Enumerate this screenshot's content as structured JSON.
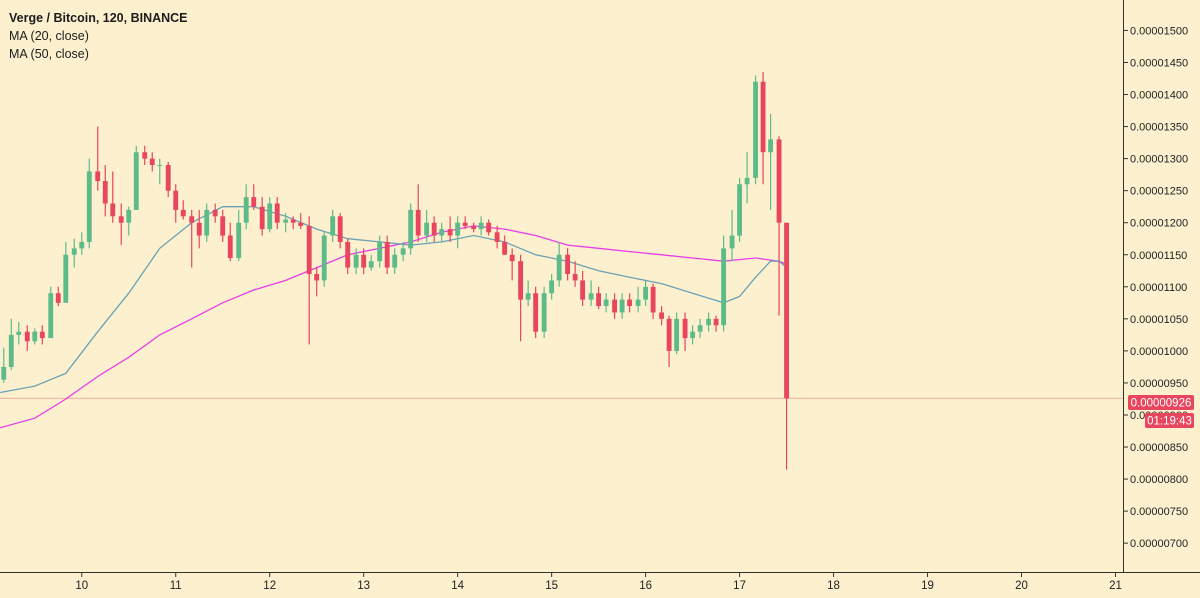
{
  "legend": {
    "title": "Verge / Bitcoin, 120, BINANCE",
    "ma20": "MA (20, close)",
    "ma50": "MA (50, close)"
  },
  "price_badge": "0.00000926",
  "countdown_badge": "01:19:43",
  "colors": {
    "background": "#fdf0cf",
    "up": "#5dbb8a",
    "down": "#e8455e",
    "ma20": "#6aa3b4",
    "ma50": "#e83ee8",
    "axis_text": "#222222",
    "price_line": "#e8455e"
  },
  "chart_data": {
    "type": "candlestick",
    "x_range": [
      9.13,
      21.08
    ],
    "x_ticks": [
      "10",
      "11",
      "12",
      "13",
      "14",
      "15",
      "16",
      "17",
      "18",
      "19",
      "20",
      "21"
    ],
    "y_range": [
      6.55e-06,
      1.5475e-05
    ],
    "y_ticks": [
      "0.00000700",
      "0.00000750",
      "0.00000800",
      "0.00000850",
      "0.00000900",
      "0.00000950",
      "0.00001000",
      "0.00001050",
      "0.00001100",
      "0.00001150",
      "0.00001200",
      "0.00001250",
      "0.00001300",
      "0.00001350",
      "0.00001400",
      "0.00001450",
      "0.00001500"
    ],
    "last_price": 9.26e-06,
    "candles": [
      {
        "t": 9.17,
        "o": 9.55e-06,
        "h": 1.005e-05,
        "l": 9.5e-06,
        "c": 9.75e-06
      },
      {
        "t": 9.25,
        "o": 9.75e-06,
        "h": 1.05e-05,
        "l": 9.7e-06,
        "c": 1.025e-05
      },
      {
        "t": 9.33,
        "o": 1.025e-05,
        "h": 1.045e-05,
        "l": 1.01e-05,
        "c": 1.03e-05
      },
      {
        "t": 9.42,
        "o": 1.03e-05,
        "h": 1.04e-05,
        "l": 1e-05,
        "c": 1.015e-05
      },
      {
        "t": 9.5,
        "o": 1.015e-05,
        "h": 1.035e-05,
        "l": 1.01e-05,
        "c": 1.03e-05
      },
      {
        "t": 9.58,
        "o": 1.03e-05,
        "h": 1.04e-05,
        "l": 1.01e-05,
        "c": 1.02e-05
      },
      {
        "t": 9.67,
        "o": 1.02e-05,
        "h": 1.1e-05,
        "l": 1.02e-05,
        "c": 1.09e-05
      },
      {
        "t": 9.75,
        "o": 1.09e-05,
        "h": 1.1e-05,
        "l": 1.07e-05,
        "c": 1.075e-05
      },
      {
        "t": 9.83,
        "o": 1.075e-05,
        "h": 1.17e-05,
        "l": 1.075e-05,
        "c": 1.15e-05
      },
      {
        "t": 9.92,
        "o": 1.15e-05,
        "h": 1.175e-05,
        "l": 1.13e-05,
        "c": 1.16e-05
      },
      {
        "t": 10.0,
        "o": 1.16e-05,
        "h": 1.185e-05,
        "l": 1.15e-05,
        "c": 1.17e-05
      },
      {
        "t": 10.08,
        "o": 1.17e-05,
        "h": 1.3e-05,
        "l": 1.16e-05,
        "c": 1.28e-05
      },
      {
        "t": 10.17,
        "o": 1.28e-05,
        "h": 1.35e-05,
        "l": 1.25e-05,
        "c": 1.265e-05
      },
      {
        "t": 10.25,
        "o": 1.265e-05,
        "h": 1.29e-05,
        "l": 1.21e-05,
        "c": 1.23e-05
      },
      {
        "t": 10.33,
        "o": 1.23e-05,
        "h": 1.28e-05,
        "l": 1.2e-05,
        "c": 1.21e-05
      },
      {
        "t": 10.42,
        "o": 1.21e-05,
        "h": 1.23e-05,
        "l": 1.165e-05,
        "c": 1.2e-05
      },
      {
        "t": 10.5,
        "o": 1.2e-05,
        "h": 1.225e-05,
        "l": 1.18e-05,
        "c": 1.22e-05
      },
      {
        "t": 10.58,
        "o": 1.22e-05,
        "h": 1.32e-05,
        "l": 1.22e-05,
        "c": 1.31e-05
      },
      {
        "t": 10.67,
        "o": 1.31e-05,
        "h": 1.32e-05,
        "l": 1.29e-05,
        "c": 1.3e-05
      },
      {
        "t": 10.75,
        "o": 1.3e-05,
        "h": 1.31e-05,
        "l": 1.28e-05,
        "c": 1.29e-05
      },
      {
        "t": 10.83,
        "o": 1.29e-05,
        "h": 1.3e-05,
        "l": 1.26e-05,
        "c": 1.29e-05
      },
      {
        "t": 10.92,
        "o": 1.29e-05,
        "h": 1.295e-05,
        "l": 1.24e-05,
        "c": 1.25e-05
      },
      {
        "t": 11.0,
        "o": 1.25e-05,
        "h": 1.26e-05,
        "l": 1.2e-05,
        "c": 1.22e-05
      },
      {
        "t": 11.08,
        "o": 1.22e-05,
        "h": 1.235e-05,
        "l": 1.205e-05,
        "c": 1.21e-05
      },
      {
        "t": 11.17,
        "o": 1.21e-05,
        "h": 1.22e-05,
        "l": 1.13e-05,
        "c": 1.2e-05
      },
      {
        "t": 11.25,
        "o": 1.2e-05,
        "h": 1.22e-05,
        "l": 1.16e-05,
        "c": 1.18e-05
      },
      {
        "t": 11.33,
        "o": 1.18e-05,
        "h": 1.23e-05,
        "l": 1.17e-05,
        "c": 1.22e-05
      },
      {
        "t": 11.42,
        "o": 1.22e-05,
        "h": 1.23e-05,
        "l": 1.2e-05,
        "c": 1.21e-05
      },
      {
        "t": 11.5,
        "o": 1.21e-05,
        "h": 1.22e-05,
        "l": 1.17e-05,
        "c": 1.18e-05
      },
      {
        "t": 11.58,
        "o": 1.18e-05,
        "h": 1.2e-05,
        "l": 1.14e-05,
        "c": 1.145e-05
      },
      {
        "t": 11.67,
        "o": 1.145e-05,
        "h": 1.22e-05,
        "l": 1.14e-05,
        "c": 1.2e-05
      },
      {
        "t": 11.75,
        "o": 1.2e-05,
        "h": 1.26e-05,
        "l": 1.19e-05,
        "c": 1.24e-05
      },
      {
        "t": 11.83,
        "o": 1.24e-05,
        "h": 1.26e-05,
        "l": 1.22e-05,
        "c": 1.225e-05
      },
      {
        "t": 11.92,
        "o": 1.225e-05,
        "h": 1.24e-05,
        "l": 1.18e-05,
        "c": 1.19e-05
      },
      {
        "t": 12.0,
        "o": 1.19e-05,
        "h": 1.24e-05,
        "l": 1.185e-05,
        "c": 1.23e-05
      },
      {
        "t": 12.08,
        "o": 1.23e-05,
        "h": 1.24e-05,
        "l": 1.19e-05,
        "c": 1.2e-05
      },
      {
        "t": 12.17,
        "o": 1.2e-05,
        "h": 1.215e-05,
        "l": 1.185e-05,
        "c": 1.205e-05
      },
      {
        "t": 12.25,
        "o": 1.205e-05,
        "h": 1.21e-05,
        "l": 1.19e-05,
        "c": 1.2e-05
      },
      {
        "t": 12.33,
        "o": 1.2e-05,
        "h": 1.215e-05,
        "l": 1.19e-05,
        "c": 1.195e-05
      },
      {
        "t": 12.42,
        "o": 1.195e-05,
        "h": 1.21e-05,
        "l": 1.01e-05,
        "c": 1.12e-05
      },
      {
        "t": 12.5,
        "o": 1.12e-05,
        "h": 1.13e-05,
        "l": 1.085e-05,
        "c": 1.11e-05
      },
      {
        "t": 12.58,
        "o": 1.11e-05,
        "h": 1.185e-05,
        "l": 1.1e-05,
        "c": 1.18e-05
      },
      {
        "t": 12.67,
        "o": 1.18e-05,
        "h": 1.22e-05,
        "l": 1.17e-05,
        "c": 1.21e-05
      },
      {
        "t": 12.75,
        "o": 1.21e-05,
        "h": 1.215e-05,
        "l": 1.16e-05,
        "c": 1.17e-05
      },
      {
        "t": 12.83,
        "o": 1.17e-05,
        "h": 1.175e-05,
        "l": 1.12e-05,
        "c": 1.13e-05
      },
      {
        "t": 12.92,
        "o": 1.13e-05,
        "h": 1.16e-05,
        "l": 1.12e-05,
        "c": 1.15e-05
      },
      {
        "t": 13.0,
        "o": 1.15e-05,
        "h": 1.16e-05,
        "l": 1.12e-05,
        "c": 1.13e-05
      },
      {
        "t": 13.08,
        "o": 1.13e-05,
        "h": 1.15e-05,
        "l": 1.125e-05,
        "c": 1.14e-05
      },
      {
        "t": 13.17,
        "o": 1.14e-05,
        "h": 1.18e-05,
        "l": 1.13e-05,
        "c": 1.17e-05
      },
      {
        "t": 13.25,
        "o": 1.17e-05,
        "h": 1.18e-05,
        "l": 1.12e-05,
        "c": 1.13e-05
      },
      {
        "t": 13.33,
        "o": 1.13e-05,
        "h": 1.16e-05,
        "l": 1.12e-05,
        "c": 1.15e-05
      },
      {
        "t": 13.42,
        "o": 1.15e-05,
        "h": 1.17e-05,
        "l": 1.14e-05,
        "c": 1.16e-05
      },
      {
        "t": 13.5,
        "o": 1.16e-05,
        "h": 1.23e-05,
        "l": 1.15e-05,
        "c": 1.22e-05
      },
      {
        "t": 13.58,
        "o": 1.22e-05,
        "h": 1.26e-05,
        "l": 1.17e-05,
        "c": 1.18e-05
      },
      {
        "t": 13.67,
        "o": 1.18e-05,
        "h": 1.22e-05,
        "l": 1.17e-05,
        "c": 1.2e-05
      },
      {
        "t": 13.75,
        "o": 1.2e-05,
        "h": 1.21e-05,
        "l": 1.17e-05,
        "c": 1.18e-05
      },
      {
        "t": 13.83,
        "o": 1.18e-05,
        "h": 1.2e-05,
        "l": 1.17e-05,
        "c": 1.19e-05
      },
      {
        "t": 13.92,
        "o": 1.19e-05,
        "h": 1.21e-05,
        "l": 1.17e-05,
        "c": 1.18e-05
      },
      {
        "t": 14.0,
        "o": 1.18e-05,
        "h": 1.21e-05,
        "l": 1.16e-05,
        "c": 1.2e-05
      },
      {
        "t": 14.08,
        "o": 1.2e-05,
        "h": 1.21e-05,
        "l": 1.19e-05,
        "c": 1.195e-05
      },
      {
        "t": 14.17,
        "o": 1.195e-05,
        "h": 1.2e-05,
        "l": 1.185e-05,
        "c": 1.19e-05
      },
      {
        "t": 14.25,
        "o": 1.19e-05,
        "h": 1.21e-05,
        "l": 1.18e-05,
        "c": 1.2e-05
      },
      {
        "t": 14.33,
        "o": 1.2e-05,
        "h": 1.205e-05,
        "l": 1.18e-05,
        "c": 1.185e-05
      },
      {
        "t": 14.42,
        "o": 1.185e-05,
        "h": 1.195e-05,
        "l": 1.16e-05,
        "c": 1.17e-05
      },
      {
        "t": 14.5,
        "o": 1.17e-05,
        "h": 1.18e-05,
        "l": 1.15e-05,
        "c": 1.15e-05
      },
      {
        "t": 14.58,
        "o": 1.15e-05,
        "h": 1.16e-05,
        "l": 1.11e-05,
        "c": 1.14e-05
      },
      {
        "t": 14.67,
        "o": 1.14e-05,
        "h": 1.15e-05,
        "l": 1.015e-05,
        "c": 1.08e-05
      },
      {
        "t": 14.75,
        "o": 1.08e-05,
        "h": 1.11e-05,
        "l": 1.07e-05,
        "c": 1.09e-05
      },
      {
        "t": 14.83,
        "o": 1.09e-05,
        "h": 1.1e-05,
        "l": 1.02e-05,
        "c": 1.03e-05
      },
      {
        "t": 14.92,
        "o": 1.03e-05,
        "h": 1.1e-05,
        "l": 1.02e-05,
        "c": 1.09e-05
      },
      {
        "t": 15.0,
        "o": 1.09e-05,
        "h": 1.12e-05,
        "l": 1.08e-05,
        "c": 1.11e-05
      },
      {
        "t": 15.08,
        "o": 1.11e-05,
        "h": 1.17e-05,
        "l": 1.1e-05,
        "c": 1.15e-05
      },
      {
        "t": 15.17,
        "o": 1.15e-05,
        "h": 1.16e-05,
        "l": 1.11e-05,
        "c": 1.12e-05
      },
      {
        "t": 15.25,
        "o": 1.12e-05,
        "h": 1.14e-05,
        "l": 1.1e-05,
        "c": 1.11e-05
      },
      {
        "t": 15.33,
        "o": 1.11e-05,
        "h": 1.125e-05,
        "l": 1.07e-05,
        "c": 1.08e-05
      },
      {
        "t": 15.42,
        "o": 1.08e-05,
        "h": 1.11e-05,
        "l": 1.07e-05,
        "c": 1.09e-05
      },
      {
        "t": 15.5,
        "o": 1.09e-05,
        "h": 1.1e-05,
        "l": 1.065e-05,
        "c": 1.07e-05
      },
      {
        "t": 15.58,
        "o": 1.07e-05,
        "h": 1.09e-05,
        "l": 1.06e-05,
        "c": 1.08e-05
      },
      {
        "t": 15.67,
        "o": 1.08e-05,
        "h": 1.09e-05,
        "l": 1.05e-05,
        "c": 1.06e-05
      },
      {
        "t": 15.75,
        "o": 1.06e-05,
        "h": 1.09e-05,
        "l": 1.05e-05,
        "c": 1.08e-05
      },
      {
        "t": 15.83,
        "o": 1.08e-05,
        "h": 1.09e-05,
        "l": 1.06e-05,
        "c": 1.07e-05
      },
      {
        "t": 15.92,
        "o": 1.07e-05,
        "h": 1.1e-05,
        "l": 1.06e-05,
        "c": 1.08e-05
      },
      {
        "t": 16.0,
        "o": 1.08e-05,
        "h": 1.11e-05,
        "l": 1.07e-05,
        "c": 1.1e-05
      },
      {
        "t": 16.08,
        "o": 1.1e-05,
        "h": 1.105e-05,
        "l": 1.05e-05,
        "c": 1.06e-05
      },
      {
        "t": 16.17,
        "o": 1.06e-05,
        "h": 1.07e-05,
        "l": 1.04e-05,
        "c": 1.05e-05
      },
      {
        "t": 16.25,
        "o": 1.05e-05,
        "h": 1.055e-05,
        "l": 9.75e-06,
        "c": 1e-05
      },
      {
        "t": 16.33,
        "o": 1e-05,
        "h": 1.06e-05,
        "l": 9.95e-06,
        "c": 1.05e-05
      },
      {
        "t": 16.42,
        "o": 1.05e-05,
        "h": 1.06e-05,
        "l": 1e-05,
        "c": 1.02e-05
      },
      {
        "t": 16.5,
        "o": 1.02e-05,
        "h": 1.04e-05,
        "l": 1.01e-05,
        "c": 1.03e-05
      },
      {
        "t": 16.58,
        "o": 1.03e-05,
        "h": 1.05e-05,
        "l": 1.02e-05,
        "c": 1.04e-05
      },
      {
        "t": 16.67,
        "o": 1.04e-05,
        "h": 1.06e-05,
        "l": 1.03e-05,
        "c": 1.05e-05
      },
      {
        "t": 16.75,
        "o": 1.05e-05,
        "h": 1.055e-05,
        "l": 1.03e-05,
        "c": 1.04e-05
      },
      {
        "t": 16.83,
        "o": 1.04e-05,
        "h": 1.18e-05,
        "l": 1.03e-05,
        "c": 1.16e-05
      },
      {
        "t": 16.92,
        "o": 1.16e-05,
        "h": 1.22e-05,
        "l": 1.14e-05,
        "c": 1.18e-05
      },
      {
        "t": 17.0,
        "o": 1.18e-05,
        "h": 1.27e-05,
        "l": 1.17e-05,
        "c": 1.26e-05
      },
      {
        "t": 17.08,
        "o": 1.26e-05,
        "h": 1.31e-05,
        "l": 1.23e-05,
        "c": 1.27e-05
      },
      {
        "t": 17.17,
        "o": 1.27e-05,
        "h": 1.43e-05,
        "l": 1.26e-05,
        "c": 1.42e-05
      },
      {
        "t": 17.25,
        "o": 1.42e-05,
        "h": 1.435e-05,
        "l": 1.26e-05,
        "c": 1.31e-05
      },
      {
        "t": 17.33,
        "o": 1.31e-05,
        "h": 1.37e-05,
        "l": 1.22e-05,
        "c": 1.33e-05
      },
      {
        "t": 17.42,
        "o": 1.33e-05,
        "h": 1.335e-05,
        "l": 1.055e-05,
        "c": 1.2e-05
      },
      {
        "t": 17.5,
        "o": 1.2e-05,
        "h": 1.2e-05,
        "l": 8.15e-06,
        "c": 9.26e-06
      }
    ],
    "ma20": [
      [
        9.13,
        9.35e-06
      ],
      [
        9.5,
        9.45e-06
      ],
      [
        9.83,
        9.65e-06
      ],
      [
        10.17,
        1.03e-05
      ],
      [
        10.5,
        1.09e-05
      ],
      [
        10.83,
        1.16e-05
      ],
      [
        11.17,
        1.2e-05
      ],
      [
        11.5,
        1.225e-05
      ],
      [
        11.83,
        1.225e-05
      ],
      [
        12.17,
        1.21e-05
      ],
      [
        12.5,
        1.19e-05
      ],
      [
        12.83,
        1.175e-05
      ],
      [
        13.17,
        1.17e-05
      ],
      [
        13.5,
        1.165e-05
      ],
      [
        13.83,
        1.17e-05
      ],
      [
        14.17,
        1.18e-05
      ],
      [
        14.5,
        1.17e-05
      ],
      [
        14.83,
        1.15e-05
      ],
      [
        15.17,
        1.14e-05
      ],
      [
        15.5,
        1.125e-05
      ],
      [
        15.83,
        1.115e-05
      ],
      [
        16.17,
        1.105e-05
      ],
      [
        16.5,
        1.09e-05
      ],
      [
        16.83,
        1.075e-05
      ],
      [
        17.0,
        1.085e-05
      ],
      [
        17.17,
        1.115e-05
      ],
      [
        17.33,
        1.14e-05
      ],
      [
        17.42,
        1.14e-05
      ],
      [
        17.5,
        1.13e-05
      ]
    ],
    "ma50": [
      [
        9.13,
        8.8e-06
      ],
      [
        9.5,
        8.95e-06
      ],
      [
        9.83,
        9.25e-06
      ],
      [
        10.17,
        9.6e-06
      ],
      [
        10.5,
        9.9e-06
      ],
      [
        10.83,
        1.025e-05
      ],
      [
        11.17,
        1.05e-05
      ],
      [
        11.5,
        1.075e-05
      ],
      [
        11.83,
        1.095e-05
      ],
      [
        12.17,
        1.11e-05
      ],
      [
        12.5,
        1.13e-05
      ],
      [
        12.83,
        1.15e-05
      ],
      [
        13.17,
        1.16e-05
      ],
      [
        13.5,
        1.17e-05
      ],
      [
        13.83,
        1.185e-05
      ],
      [
        14.17,
        1.195e-05
      ],
      [
        14.5,
        1.19e-05
      ],
      [
        14.83,
        1.18e-05
      ],
      [
        15.17,
        1.165e-05
      ],
      [
        15.5,
        1.16e-05
      ],
      [
        15.83,
        1.155e-05
      ],
      [
        16.17,
        1.15e-05
      ],
      [
        16.5,
        1.145e-05
      ],
      [
        16.83,
        1.14e-05
      ],
      [
        17.17,
        1.145e-05
      ],
      [
        17.42,
        1.14e-05
      ],
      [
        17.5,
        1.135e-05
      ]
    ]
  }
}
